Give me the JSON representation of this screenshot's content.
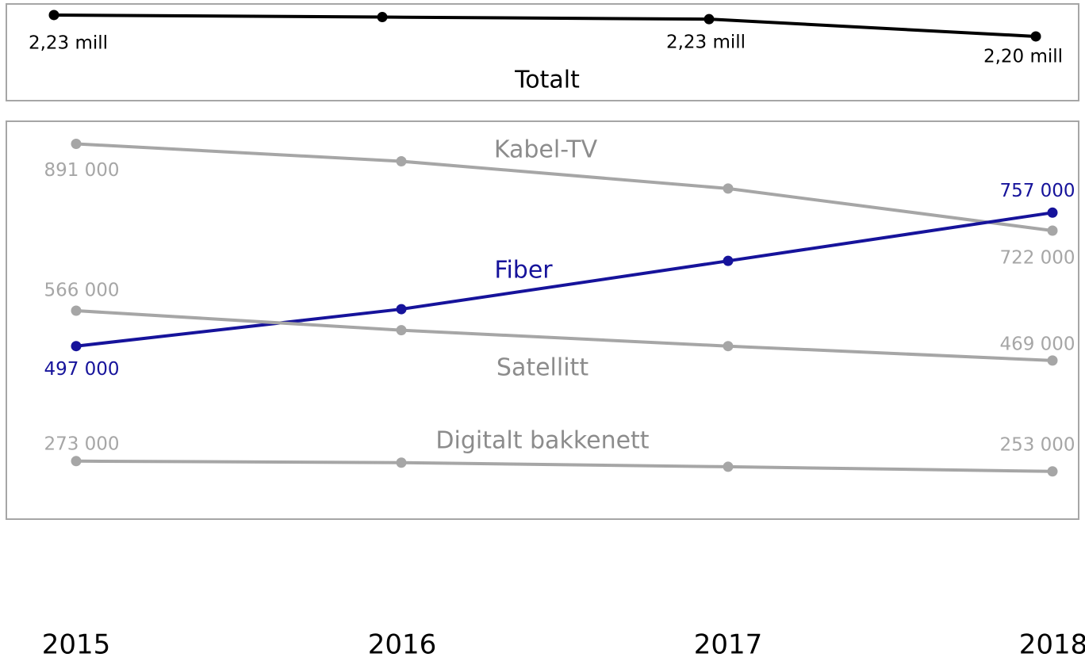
{
  "chart_data": [
    {
      "type": "line",
      "title": "Totalt",
      "ylim": [
        2.11,
        2.25
      ],
      "series": [
        {
          "name": "Totalt",
          "color": "#000000",
          "values": [
            2.234,
            2.231,
            2.228,
            2.203
          ],
          "value_labels": [
            "2,23 mill",
            null,
            "2,23 mill",
            "2,20 mill"
          ]
        }
      ]
    },
    {
      "type": "line",
      "categories": [
        "2015",
        "2016",
        "2017",
        "2018"
      ],
      "ylim": [
        160000,
        935000
      ],
      "series": [
        {
          "name": "Kabel-TV",
          "color": "#a6a6a6",
          "values": [
            891000,
            857000,
            804000,
            722000
          ],
          "value_labels": [
            "891 000",
            null,
            null,
            "722 000"
          ]
        },
        {
          "name": "Fiber",
          "color": "#16139b",
          "values": [
            497000,
            569000,
            663000,
            757000
          ],
          "value_labels": [
            "497 000",
            null,
            null,
            "757 000"
          ]
        },
        {
          "name": "Satellitt",
          "color": "#a6a6a6",
          "values": [
            566000,
            528000,
            497000,
            469000
          ],
          "value_labels": [
            "566 000",
            null,
            null,
            "469 000"
          ]
        },
        {
          "name": "Digitalt bakkenett",
          "color": "#a6a6a6",
          "values": [
            273000,
            270000,
            262000,
            253000
          ],
          "value_labels": [
            "273 000",
            null,
            null,
            "253 000"
          ]
        }
      ]
    }
  ]
}
